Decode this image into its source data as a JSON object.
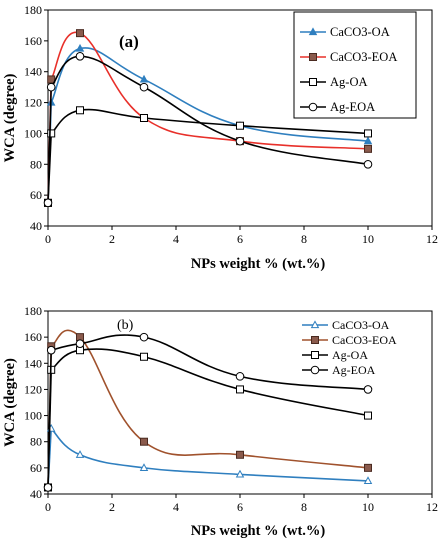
{
  "chart_data": [
    {
      "type": "line",
      "panel_label": "(a)",
      "xlabel": "NPs weight % (wt.%)",
      "ylabel": "WCA (degree)",
      "xlim": [
        0,
        12
      ],
      "ylim": [
        40,
        180
      ],
      "xticks": [
        0,
        2,
        4,
        6,
        8,
        10,
        12
      ],
      "yticks": [
        40,
        60,
        80,
        100,
        120,
        140,
        160,
        180
      ],
      "grid": false,
      "legend_position": "top-right",
      "series": [
        {
          "name": "CaCO3-OA",
          "color": "#2f7fbf",
          "marker": "triangle",
          "fill": "#2f7fbf",
          "x": [
            0,
            0.1,
            1,
            3,
            6,
            10
          ],
          "y": [
            55,
            120,
            155,
            135,
            105,
            95
          ]
        },
        {
          "name": "CaCO3-EOA",
          "color": "#e8302a",
          "marker": "square",
          "fill": "#8a5a4c",
          "x": [
            0,
            0.1,
            1,
            3,
            6,
            10
          ],
          "y": [
            55,
            135,
            165,
            110,
            95,
            90
          ]
        },
        {
          "name": "Ag-OA",
          "color": "#000000",
          "marker": "square",
          "fill": "#ffffff",
          "x": [
            0,
            0.1,
            1,
            3,
            6,
            10
          ],
          "y": [
            55,
            100,
            115,
            110,
            105,
            100
          ]
        },
        {
          "name": "Ag-EOA",
          "color": "#000000",
          "marker": "circle",
          "fill": "#ffffff",
          "x": [
            0,
            0.1,
            1,
            3,
            6,
            10
          ],
          "y": [
            55,
            130,
            150,
            130,
            95,
            80
          ]
        }
      ]
    },
    {
      "type": "line",
      "panel_label": "(b)",
      "xlabel": "NPs weight % (wt.%)",
      "ylabel": "WCA (degree)",
      "xlim": [
        0,
        12
      ],
      "ylim": [
        40,
        180
      ],
      "xticks": [
        0,
        2,
        4,
        6,
        8,
        10,
        12
      ],
      "yticks": [
        40,
        60,
        80,
        100,
        120,
        140,
        160,
        180
      ],
      "grid": false,
      "legend_position": "top-right",
      "series": [
        {
          "name": "CaCO3-OA",
          "color": "#2f7fbf",
          "marker": "triangle",
          "fill": "#ffffff",
          "x": [
            0,
            0.1,
            1,
            3,
            6,
            10
          ],
          "y": [
            45,
            90,
            70,
            60,
            55,
            50
          ]
        },
        {
          "name": "CaCO3-EOA",
          "color": "#a0522d",
          "marker": "square",
          "fill": "#8a5a4c",
          "x": [
            0,
            0.1,
            1,
            3,
            6,
            10
          ],
          "y": [
            45,
            153,
            160,
            80,
            70,
            60
          ]
        },
        {
          "name": "Ag-OA",
          "color": "#000000",
          "marker": "square",
          "fill": "#ffffff",
          "x": [
            0,
            0.1,
            1,
            3,
            6,
            10
          ],
          "y": [
            45,
            135,
            150,
            145,
            120,
            100
          ]
        },
        {
          "name": "Ag-EOA",
          "color": "#000000",
          "marker": "circle",
          "fill": "#ffffff",
          "x": [
            0,
            0.1,
            1,
            3,
            6,
            10
          ],
          "y": [
            45,
            150,
            155,
            160,
            130,
            120
          ]
        }
      ]
    }
  ]
}
